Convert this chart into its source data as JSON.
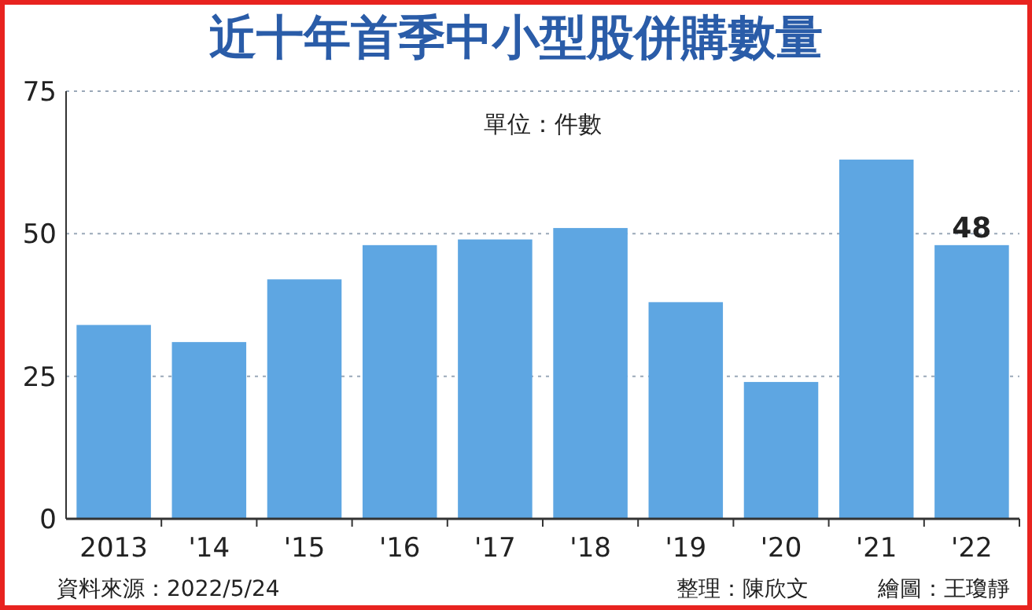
{
  "chart_data": {
    "type": "bar",
    "title": "近十年首季中小型股併購數量",
    "categories": [
      "2013",
      "'14",
      "'15",
      "'16",
      "'17",
      "'18",
      "'19",
      "'20",
      "'21",
      "'22"
    ],
    "values": [
      34,
      31,
      42,
      48,
      49,
      51,
      38,
      24,
      63,
      48
    ],
    "value_labels": [
      null,
      null,
      null,
      null,
      null,
      null,
      null,
      null,
      null,
      "48"
    ],
    "color": "#5ea6e2",
    "ylim": [
      0,
      75
    ],
    "yticks": [
      0,
      25,
      50,
      75
    ],
    "grid": "y",
    "annotations": [
      "單位：件數",
      "資料來源：2022/5/24",
      "整理：陳欣文",
      "繪圖：王瓊靜"
    ]
  }
}
